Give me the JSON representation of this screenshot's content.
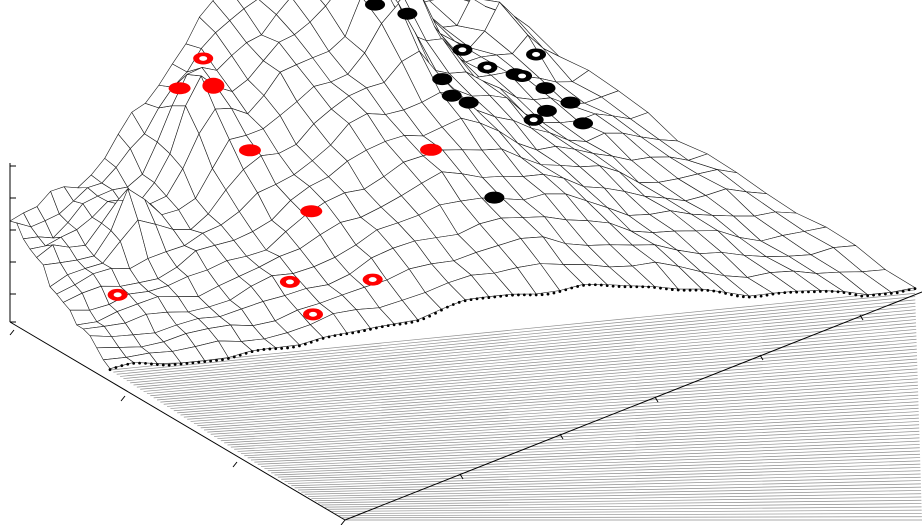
{
  "figure": {
    "kind": "3d-surface-mesh",
    "colors": {
      "mesh_line": "#1a1a1a",
      "mesh_fill": "#ffffff",
      "floor_line": "#8c8c8c",
      "axis": "#000000",
      "red_marker": "#ff0000",
      "black_marker": "#000000",
      "ring_inner": "#ffffff",
      "ridge_dots": "#000000"
    }
  },
  "markers": {
    "red_filled": [
      {
        "row": 2.0,
        "col": 10.5,
        "rx": 11,
        "ry": 6
      },
      {
        "row": 3.2,
        "col": 11.6,
        "rx": 11,
        "ry": 8
      },
      {
        "row": 5.6,
        "col": 11.7,
        "rx": 11,
        "ry": 6
      },
      {
        "row": 9.0,
        "col": 12.3,
        "rx": 11,
        "ry": 6
      },
      {
        "row": 8.8,
        "col": 18.6,
        "rx": 11,
        "ry": 6
      }
    ],
    "red_ring": [
      {
        "row": 1.4,
        "col": 12.7
      },
      {
        "row": 8.6,
        "col": 2.6
      },
      {
        "row": 11.4,
        "col": 9.6
      },
      {
        "row": 13.5,
        "col": 9.4
      },
      {
        "row": 12.8,
        "col": 12.5
      }
    ],
    "black_filled": [
      {
        "row": 1.5,
        "col": 21.0
      },
      {
        "row": 2.2,
        "col": 21.7
      },
      {
        "row": 2.7,
        "col": 22.6
      },
      {
        "row": 1.8,
        "col": 24.2
      },
      {
        "row": 3.5,
        "col": 20.5
      },
      {
        "row": 5.1,
        "col": 21.4
      },
      {
        "row": 6.0,
        "col": 22.3
      },
      {
        "row": 7.2,
        "col": 21.4
      },
      {
        "row": 6.8,
        "col": 22.8
      },
      {
        "row": 11.0,
        "col": 19.6
      },
      {
        "row": 4.0,
        "col": 29.5
      },
      {
        "row": 4.5,
        "col": 30.5
      },
      {
        "row": 4.8,
        "col": 31.5
      },
      {
        "row": 5.5,
        "col": 29.0
      },
      {
        "row": 6.2,
        "col": 30.0
      }
    ],
    "black_ring": [
      {
        "row": 2.4,
        "col": 28.8
      },
      {
        "row": 3.6,
        "col": 28.4
      },
      {
        "row": 4.0,
        "col": 29.9
      },
      {
        "row": 3.4,
        "col": 31.8
      },
      {
        "row": 6.0,
        "col": 27.5
      }
    ]
  }
}
